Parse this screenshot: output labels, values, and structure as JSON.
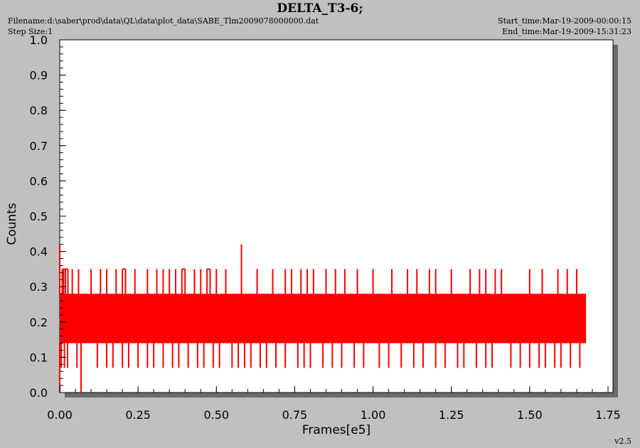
{
  "header": {
    "title": "DELTA_T3-6;",
    "filename": "Filename:d:\\saber\\prod\\data\\QL\\data\\plot_data\\SABE_Tlm2009078000000.dat",
    "step_size": "Step Size:1",
    "start_time": "Start_time:Mar-19-2009-00:00:15",
    "end_time": "End_time:Mar-19-2009-15:31:23"
  },
  "footer": {
    "version": "v2.5"
  },
  "colors": {
    "series": "#ff0000",
    "plot_bg": "#ffffff",
    "page_bg": "#c0c0c0",
    "shadow": "#6b6b6b"
  },
  "chart_data": {
    "type": "line",
    "title": "DELTA_T3-6;",
    "xlabel": "Frames[e5]",
    "ylabel": "Counts",
    "xlim": [
      0,
      1.75
    ],
    "ylim": [
      0,
      1.0
    ],
    "grid": false,
    "x_ticks": [
      "0.00",
      "0.25",
      "0.50",
      "0.75",
      "1.00",
      "1.25",
      "1.50",
      "1.75"
    ],
    "y_ticks": [
      "0.0",
      "0.1",
      "0.2",
      "0.3",
      "0.4",
      "0.5",
      "0.6",
      "0.7",
      "0.8",
      "0.9",
      "1.0"
    ],
    "series": [
      {
        "x_range": [
          0,
          1.68
        ],
        "levels": [
          0.07,
          0.14,
          0.21,
          0.28,
          0.35,
          0.42
        ],
        "dense_band": [
          0.14,
          0.28
        ],
        "spikes_high": [
          [
            0.0,
            0.42
          ],
          [
            0.008,
            0.35
          ],
          [
            0.012,
            0.35
          ],
          [
            0.018,
            0.35
          ],
          [
            0.026,
            0.35
          ],
          [
            0.04,
            0.35
          ],
          [
            0.06,
            0.35
          ],
          [
            0.1,
            0.35
          ],
          [
            0.13,
            0.35
          ],
          [
            0.15,
            0.35
          ],
          [
            0.18,
            0.35
          ],
          [
            0.2,
            0.35
          ],
          [
            0.21,
            0.35
          ],
          [
            0.24,
            0.35
          ],
          [
            0.28,
            0.35
          ],
          [
            0.31,
            0.35
          ],
          [
            0.33,
            0.35
          ],
          [
            0.35,
            0.35
          ],
          [
            0.37,
            0.35
          ],
          [
            0.39,
            0.35
          ],
          [
            0.4,
            0.35
          ],
          [
            0.43,
            0.35
          ],
          [
            0.45,
            0.35
          ],
          [
            0.47,
            0.35
          ],
          [
            0.48,
            0.35
          ],
          [
            0.5,
            0.35
          ],
          [
            0.53,
            0.35
          ],
          [
            0.58,
            0.42
          ],
          [
            0.63,
            0.35
          ],
          [
            0.68,
            0.35
          ],
          [
            0.72,
            0.35
          ],
          [
            0.74,
            0.35
          ],
          [
            0.77,
            0.35
          ],
          [
            0.79,
            0.35
          ],
          [
            0.81,
            0.35
          ],
          [
            0.85,
            0.35
          ],
          [
            0.88,
            0.35
          ],
          [
            0.91,
            0.35
          ],
          [
            0.95,
            0.35
          ],
          [
            1.0,
            0.35
          ],
          [
            1.06,
            0.35
          ],
          [
            1.11,
            0.35
          ],
          [
            1.14,
            0.35
          ],
          [
            1.18,
            0.35
          ],
          [
            1.2,
            0.35
          ],
          [
            1.25,
            0.35
          ],
          [
            1.31,
            0.35
          ],
          [
            1.34,
            0.35
          ],
          [
            1.36,
            0.35
          ],
          [
            1.39,
            0.35
          ],
          [
            1.41,
            0.35
          ],
          [
            1.5,
            0.35
          ],
          [
            1.54,
            0.35
          ],
          [
            1.59,
            0.35
          ],
          [
            1.62,
            0.35
          ],
          [
            1.65,
            0.35
          ]
        ],
        "spikes_low": [
          [
            0.0,
            0.0
          ],
          [
            0.005,
            0.07
          ],
          [
            0.015,
            0.07
          ],
          [
            0.025,
            0.07
          ],
          [
            0.055,
            0.07
          ],
          [
            0.068,
            0.0
          ],
          [
            0.12,
            0.07
          ],
          [
            0.15,
            0.07
          ],
          [
            0.17,
            0.07
          ],
          [
            0.2,
            0.07
          ],
          [
            0.22,
            0.07
          ],
          [
            0.25,
            0.07
          ],
          [
            0.28,
            0.07
          ],
          [
            0.3,
            0.07
          ],
          [
            0.33,
            0.07
          ],
          [
            0.36,
            0.07
          ],
          [
            0.38,
            0.07
          ],
          [
            0.41,
            0.07
          ],
          [
            0.44,
            0.07
          ],
          [
            0.46,
            0.07
          ],
          [
            0.49,
            0.07
          ],
          [
            0.51,
            0.07
          ],
          [
            0.55,
            0.07
          ],
          [
            0.57,
            0.07
          ],
          [
            0.59,
            0.07
          ],
          [
            0.61,
            0.07
          ],
          [
            0.64,
            0.07
          ],
          [
            0.66,
            0.07
          ],
          [
            0.69,
            0.07
          ],
          [
            0.72,
            0.07
          ],
          [
            0.76,
            0.07
          ],
          [
            0.78,
            0.07
          ],
          [
            0.8,
            0.07
          ],
          [
            0.84,
            0.07
          ],
          [
            0.87,
            0.07
          ],
          [
            0.9,
            0.07
          ],
          [
            0.94,
            0.07
          ],
          [
            0.97,
            0.07
          ],
          [
            1.02,
            0.07
          ],
          [
            1.05,
            0.07
          ],
          [
            1.09,
            0.07
          ],
          [
            1.13,
            0.07
          ],
          [
            1.16,
            0.07
          ],
          [
            1.2,
            0.07
          ],
          [
            1.23,
            0.07
          ],
          [
            1.27,
            0.07
          ],
          [
            1.29,
            0.07
          ],
          [
            1.33,
            0.07
          ],
          [
            1.36,
            0.07
          ],
          [
            1.38,
            0.07
          ],
          [
            1.44,
            0.07
          ],
          [
            1.47,
            0.07
          ],
          [
            1.5,
            0.07
          ],
          [
            1.53,
            0.07
          ],
          [
            1.55,
            0.07
          ],
          [
            1.58,
            0.07
          ],
          [
            1.6,
            0.07
          ],
          [
            1.63,
            0.07
          ],
          [
            1.66,
            0.07
          ]
        ]
      }
    ]
  }
}
